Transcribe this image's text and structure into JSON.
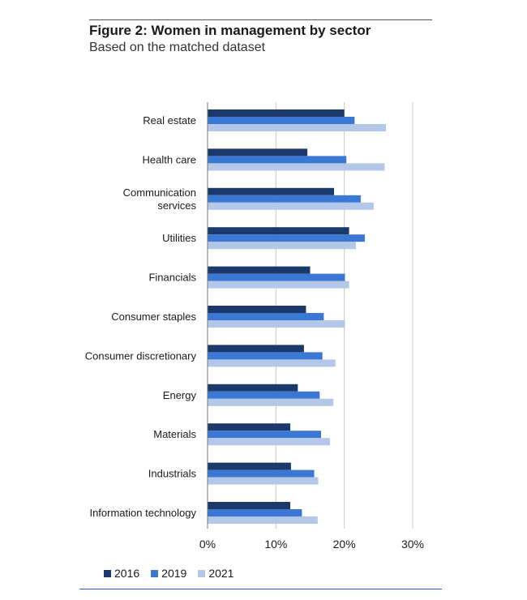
{
  "figure": {
    "title": "Figure 2: Women in management by sector",
    "subtitle": "Based on the matched dataset"
  },
  "chart_data": {
    "type": "bar",
    "orientation": "horizontal",
    "categories": [
      "Real estate",
      "Health care",
      "Communication services",
      "Utilities",
      "Financials",
      "Consumer staples",
      "Consumer discretionary",
      "Energy",
      "Materials",
      "Industrials",
      "Information technology"
    ],
    "category_lines": [
      [
        "Real estate"
      ],
      [
        "Health care"
      ],
      [
        "Communication",
        "services"
      ],
      [
        "Utilities"
      ],
      [
        "Financials"
      ],
      [
        "Consumer staples"
      ],
      [
        "Consumer discretionary"
      ],
      [
        "Energy"
      ],
      [
        "Materials"
      ],
      [
        "Industrials"
      ],
      [
        "Information technology"
      ]
    ],
    "series": [
      {
        "name": "2016",
        "color": "#1b3a6b",
        "values": [
          20.0,
          14.6,
          18.5,
          20.7,
          15.0,
          14.4,
          14.1,
          13.2,
          12.1,
          12.2,
          12.1
        ]
      },
      {
        "name": "2019",
        "color": "#3a78d4",
        "values": [
          21.5,
          20.3,
          22.4,
          23.0,
          20.1,
          17.0,
          16.8,
          16.4,
          16.6,
          15.6,
          13.8
        ]
      },
      {
        "name": "2021",
        "color": "#b3c8e8",
        "values": [
          26.1,
          25.9,
          24.3,
          21.7,
          20.7,
          20.1,
          18.7,
          18.4,
          17.9,
          16.2,
          16.1
        ]
      }
    ],
    "xlim": [
      0,
      30
    ],
    "x_ticks": [
      "0%",
      "10%",
      "20%",
      "30%"
    ],
    "x_tick_values": [
      0,
      10,
      20,
      30
    ],
    "grid": "vertical",
    "legend_position": "bottom-left"
  }
}
